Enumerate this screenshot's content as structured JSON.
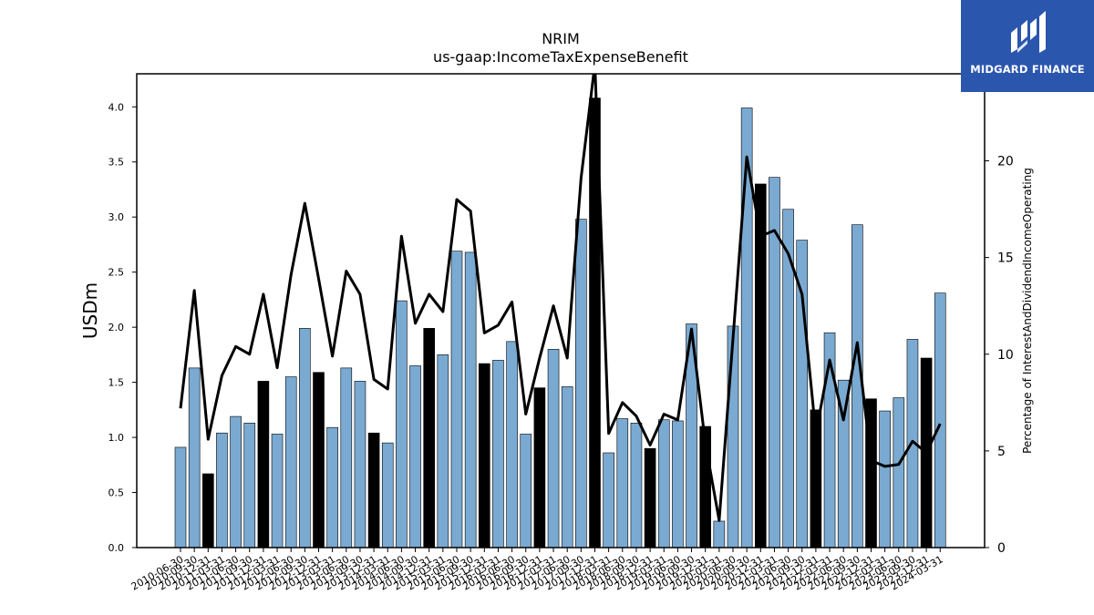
{
  "brand": {
    "name": "MIDGARD FINANCE",
    "color": "#2a56ad"
  },
  "chart_data": {
    "type": "bar",
    "title": "NRIM",
    "subtitle": "us-gaap:IncomeTaxExpenseBenefit",
    "ylabel": "USDm",
    "y2label": "Percentage of InterestAndDividendIncomeOperating",
    "ylim": [
      0,
      4.3
    ],
    "y2lim": [
      0,
      24.5
    ],
    "yticks": [
      "0.0",
      "0.5",
      "1.0",
      "1.5",
      "2.0",
      "2.5",
      "3.0",
      "3.5",
      "4.0"
    ],
    "y2ticks": [
      "0",
      "5",
      "10",
      "15",
      "20"
    ],
    "colors": {
      "bar": "#7aaad2",
      "bar_annual": "#000000",
      "line": "#000000"
    },
    "categories": [
      "2010-06-30",
      "2010-09-30",
      "2010-12-31",
      "2011-03-31",
      "2011-06-30",
      "2011-09-30",
      "2011-12-31",
      "2012-03-31",
      "2012-06-30",
      "2012-09-30",
      "2012-12-31",
      "2013-03-31",
      "2013-06-30",
      "2013-09-30",
      "2013-12-31",
      "2014-03-31",
      "2014-06-30",
      "2014-09-30",
      "2014-12-31",
      "2015-03-31",
      "2015-06-30",
      "2015-09-30",
      "2015-12-31",
      "2016-03-31",
      "2016-06-30",
      "2016-09-30",
      "2016-12-31",
      "2017-03-31",
      "2017-06-30",
      "2017-09-30",
      "2017-12-31",
      "2018-03-31",
      "2018-06-30",
      "2018-09-30",
      "2018-12-31",
      "2019-03-31",
      "2019-06-30",
      "2019-09-30",
      "2019-12-31",
      "2020-03-31",
      "2020-06-30",
      "2020-09-30",
      "2020-12-31",
      "2021-03-31",
      "2021-06-30",
      "2021-09-30",
      "2021-12-31",
      "2022-03-31",
      "2022-06-30",
      "2022-09-30",
      "2022-12-31",
      "2023-03-31",
      "2023-06-30",
      "2023-09-30",
      "2023-12-31",
      "2024-03-31"
    ],
    "x_tick_labels": [
      "2010-06-30",
      "2010-09-30",
      "2010-12-31",
      "2011-03-31",
      "2011-06-30",
      "2011-09-30",
      "2011-12-31",
      "2012-03-31",
      "2012-06-30",
      "2012-09-30",
      "2012-12-31",
      "2013-03-31",
      "2013-06-30",
      "2013-09-30",
      "2013-12-31",
      "2014-03-31",
      "2014-06-30",
      "2014-09-30",
      "2014-12-31",
      "2015-03-31",
      "2015-06-30",
      "2015-09-30",
      "2015-12-31",
      "2016-03-31",
      "2016-06-30",
      "2016-09-30",
      "2016-12-31",
      "2017-03-31",
      "2017-06-30",
      "2017-09-30",
      "2017-12-31",
      "2018-03-31",
      "2018-06-30",
      "2018-09-30",
      "2018-12-31",
      "2019-03-31",
      "2019-06-30",
      "2019-09-30",
      "2019-12-31",
      "2020-03-31",
      "2020-06-30",
      "2020-09-30",
      "2020-12-31",
      "2021-03-31",
      "2021-06-30",
      "2021-09-30",
      "2021-12-31",
      "2022-03-31",
      "2022-06-30",
      "2022-09-30",
      "2022-12-31",
      "2023-03-31",
      "2023-06-30",
      "2023-09-30",
      "2023-12-31",
      "2024-03-31"
    ],
    "series": [
      {
        "type": "bar",
        "axis": "left",
        "values": [
          0.91,
          1.63,
          0.67,
          1.04,
          1.19,
          1.13,
          1.51,
          1.03,
          1.55,
          1.99,
          1.59,
          1.09,
          1.63,
          1.51,
          1.04,
          0.95,
          2.24,
          1.65,
          1.99,
          1.75,
          2.69,
          2.68,
          1.67,
          1.7,
          1.87,
          1.03,
          1.45,
          1.8,
          1.46,
          2.98,
          4.08,
          0.86,
          1.17,
          1.13,
          0.9,
          1.16,
          1.15,
          2.03,
          1.1,
          0.24,
          2.01,
          3.99,
          3.3,
          3.36,
          3.07,
          2.79,
          1.25,
          1.95,
          1.52,
          2.93,
          1.35,
          1.24,
          1.36,
          1.89,
          1.72,
          2.31
        ],
        "annual_flags": [
          false,
          false,
          true,
          false,
          false,
          false,
          true,
          false,
          false,
          false,
          true,
          false,
          false,
          false,
          true,
          false,
          false,
          false,
          true,
          false,
          false,
          false,
          true,
          false,
          false,
          false,
          true,
          false,
          false,
          false,
          true,
          false,
          false,
          false,
          true,
          false,
          false,
          false,
          true,
          false,
          false,
          false,
          true,
          false,
          false,
          false,
          true,
          false,
          false,
          false,
          true,
          false,
          false,
          false,
          true,
          false
        ]
      },
      {
        "type": "line",
        "axis": "right",
        "values": [
          7.2,
          13.3,
          5.6,
          8.9,
          10.4,
          10.0,
          13.1,
          9.3,
          14.1,
          17.8,
          13.9,
          9.9,
          14.3,
          13.1,
          8.7,
          8.2,
          16.1,
          11.6,
          13.1,
          12.2,
          18.0,
          17.4,
          11.1,
          11.5,
          12.7,
          6.9,
          9.8,
          12.5,
          9.8,
          19.1,
          25.0,
          5.9,
          7.5,
          6.8,
          5.3,
          6.9,
          6.6,
          11.3,
          5.4,
          1.4,
          10.8,
          20.2,
          16.1,
          16.4,
          15.2,
          13.1,
          5.9,
          9.7,
          6.6,
          10.6,
          4.5,
          4.2,
          4.3,
          5.5,
          4.9,
          6.4
        ]
      }
    ],
    "legend": "none",
    "grid": false
  }
}
